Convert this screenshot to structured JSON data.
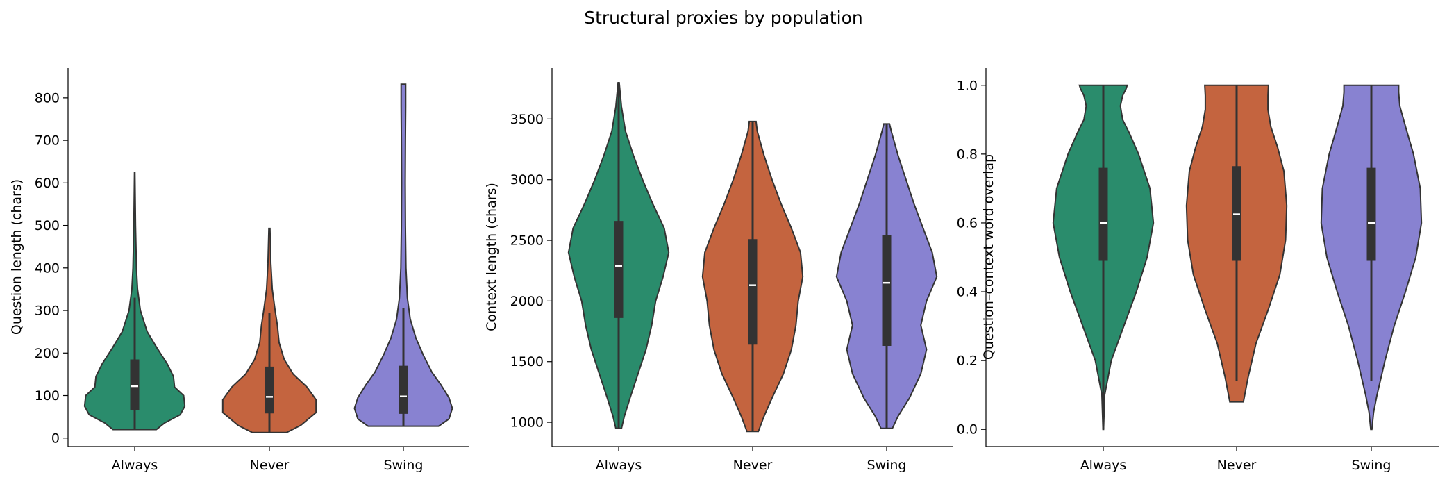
{
  "figure": {
    "title": "Structural proxies by population"
  },
  "chart_data": [
    {
      "type": "violin",
      "ylabel": "Question length (chars)",
      "xlabel": "",
      "categories": [
        "Always",
        "Never",
        "Swing"
      ],
      "ylim": [
        -20,
        870
      ],
      "yticks": [
        0,
        100,
        200,
        300,
        400,
        500,
        600,
        700,
        800
      ],
      "ytick_labels": [
        "0",
        "100",
        "200",
        "300",
        "400",
        "500",
        "600",
        "700",
        "800"
      ],
      "violins": [
        {
          "name": "Always",
          "color": "#2a8c6c",
          "min": 20,
          "max": 625,
          "q1": 65,
          "median": 122,
          "q3": 185,
          "whisker_low": 20,
          "whisker_high": 330,
          "profile": [
            [
              20,
              0.38
            ],
            [
              35,
              0.52
            ],
            [
              55,
              0.8
            ],
            [
              75,
              0.88
            ],
            [
              100,
              0.86
            ],
            [
              120,
              0.7
            ],
            [
              145,
              0.68
            ],
            [
              175,
              0.57
            ],
            [
              210,
              0.4
            ],
            [
              250,
              0.22
            ],
            [
              300,
              0.1
            ],
            [
              350,
              0.05
            ],
            [
              400,
              0.03
            ],
            [
              500,
              0.015
            ],
            [
              625,
              0.004
            ]
          ]
        },
        {
          "name": "Never",
          "color": "#c4643f",
          "min": 13,
          "max": 493,
          "q1": 58,
          "median": 97,
          "q3": 168,
          "whisker_low": 13,
          "whisker_high": 295,
          "profile": [
            [
              13,
              0.3
            ],
            [
              30,
              0.55
            ],
            [
              60,
              0.82
            ],
            [
              90,
              0.82
            ],
            [
              120,
              0.66
            ],
            [
              150,
              0.42
            ],
            [
              185,
              0.26
            ],
            [
              225,
              0.17
            ],
            [
              265,
              0.14
            ],
            [
              300,
              0.1
            ],
            [
              350,
              0.05
            ],
            [
              410,
              0.025
            ],
            [
              493,
              0.01
            ]
          ]
        },
        {
          "name": "Swing",
          "color": "#8882d1",
          "min": 28,
          "max": 832,
          "q1": 57,
          "median": 98,
          "q3": 170,
          "whisker_low": 28,
          "whisker_high": 305,
          "profile": [
            [
              28,
              0.62
            ],
            [
              45,
              0.8
            ],
            [
              70,
              0.86
            ],
            [
              95,
              0.8
            ],
            [
              125,
              0.66
            ],
            [
              155,
              0.5
            ],
            [
              195,
              0.35
            ],
            [
              235,
              0.22
            ],
            [
              280,
              0.12
            ],
            [
              330,
              0.07
            ],
            [
              400,
              0.045
            ],
            [
              500,
              0.035
            ],
            [
              600,
              0.032
            ],
            [
              700,
              0.035
            ],
            [
              780,
              0.04
            ],
            [
              832,
              0.04
            ]
          ]
        }
      ]
    },
    {
      "type": "violin",
      "ylabel": "Context length (chars)",
      "xlabel": "",
      "categories": [
        "Always",
        "Never",
        "Swing"
      ],
      "ylim": [
        800,
        3920
      ],
      "yticks": [
        1000,
        1500,
        2000,
        2500,
        3000,
        3500
      ],
      "ytick_labels": [
        "1000",
        "1500",
        "2000",
        "2500",
        "3000",
        "3500"
      ],
      "violins": [
        {
          "name": "Always",
          "color": "#2a8c6c",
          "min": 950,
          "max": 3800,
          "q1": 1860,
          "median": 2290,
          "q3": 2660,
          "whisker_low": 950,
          "whisker_high": 3800,
          "profile": [
            [
              950,
              0.05
            ],
            [
              1050,
              0.1
            ],
            [
              1200,
              0.2
            ],
            [
              1400,
              0.34
            ],
            [
              1600,
              0.48
            ],
            [
              1800,
              0.58
            ],
            [
              2000,
              0.65
            ],
            [
              2200,
              0.78
            ],
            [
              2400,
              0.88
            ],
            [
              2600,
              0.8
            ],
            [
              2800,
              0.6
            ],
            [
              3000,
              0.42
            ],
            [
              3200,
              0.26
            ],
            [
              3400,
              0.12
            ],
            [
              3600,
              0.05
            ],
            [
              3800,
              0.01
            ]
          ]
        },
        {
          "name": "Never",
          "color": "#c4643f",
          "min": 925,
          "max": 3480,
          "q1": 1640,
          "median": 2130,
          "q3": 2510,
          "whisker_low": 925,
          "whisker_high": 3480,
          "profile": [
            [
              925,
              0.1
            ],
            [
              1050,
              0.2
            ],
            [
              1200,
              0.34
            ],
            [
              1400,
              0.54
            ],
            [
              1600,
              0.68
            ],
            [
              1800,
              0.76
            ],
            [
              2000,
              0.8
            ],
            [
              2200,
              0.88
            ],
            [
              2400,
              0.84
            ],
            [
              2600,
              0.68
            ],
            [
              2800,
              0.5
            ],
            [
              3000,
              0.34
            ],
            [
              3200,
              0.2
            ],
            [
              3400,
              0.08
            ],
            [
              3480,
              0.06
            ]
          ]
        },
        {
          "name": "Swing",
          "color": "#8882d1",
          "min": 950,
          "max": 3460,
          "q1": 1630,
          "median": 2150,
          "q3": 2540,
          "whisker_low": 950,
          "whisker_high": 3460,
          "profile": [
            [
              950,
              0.1
            ],
            [
              1050,
              0.2
            ],
            [
              1200,
              0.4
            ],
            [
              1400,
              0.6
            ],
            [
              1600,
              0.7
            ],
            [
              1800,
              0.6
            ],
            [
              2000,
              0.7
            ],
            [
              2200,
              0.88
            ],
            [
              2400,
              0.8
            ],
            [
              2600,
              0.64
            ],
            [
              2800,
              0.48
            ],
            [
              3000,
              0.34
            ],
            [
              3200,
              0.2
            ],
            [
              3400,
              0.08
            ],
            [
              3460,
              0.05
            ]
          ]
        }
      ]
    },
    {
      "type": "violin",
      "ylabel": "Question–context word overlap",
      "xlabel": "",
      "categories": [
        "Always",
        "Never",
        "Swing"
      ],
      "ylim": [
        -0.05,
        1.05
      ],
      "yticks": [
        0.0,
        0.2,
        0.4,
        0.6,
        0.8,
        1.0
      ],
      "ytick_labels": [
        "0.0",
        "0.2",
        "0.4",
        "0.6",
        "0.8",
        "1.0"
      ],
      "violins": [
        {
          "name": "Always",
          "color": "#2a8c6c",
          "min": 0.0,
          "max": 1.0,
          "q1": 0.49,
          "median": 0.6,
          "q3": 0.76,
          "whisker_low": 0.0,
          "whisker_high": 1.0,
          "profile": [
            [
              0.0,
              0.005
            ],
            [
              0.1,
              0.025
            ],
            [
              0.2,
              0.14
            ],
            [
              0.3,
              0.36
            ],
            [
              0.4,
              0.58
            ],
            [
              0.5,
              0.77
            ],
            [
              0.6,
              0.88
            ],
            [
              0.7,
              0.82
            ],
            [
              0.8,
              0.62
            ],
            [
              0.86,
              0.46
            ],
            [
              0.9,
              0.34
            ],
            [
              0.94,
              0.3
            ],
            [
              0.97,
              0.34
            ],
            [
              0.99,
              0.4
            ],
            [
              1.0,
              0.42
            ]
          ]
        },
        {
          "name": "Never",
          "color": "#c4643f",
          "min": 0.08,
          "max": 1.0,
          "q1": 0.49,
          "median": 0.625,
          "q3": 0.765,
          "whisker_low": 0.14,
          "whisker_high": 1.0,
          "profile": [
            [
              0.08,
              0.12
            ],
            [
              0.15,
              0.2
            ],
            [
              0.25,
              0.34
            ],
            [
              0.35,
              0.56
            ],
            [
              0.45,
              0.76
            ],
            [
              0.55,
              0.86
            ],
            [
              0.65,
              0.88
            ],
            [
              0.75,
              0.83
            ],
            [
              0.82,
              0.72
            ],
            [
              0.88,
              0.6
            ],
            [
              0.93,
              0.55
            ],
            [
              0.97,
              0.55
            ],
            [
              1.0,
              0.56
            ]
          ]
        },
        {
          "name": "Swing",
          "color": "#8882d1",
          "min": 0.0,
          "max": 1.0,
          "q1": 0.49,
          "median": 0.6,
          "q3": 0.76,
          "whisker_low": 0.14,
          "whisker_high": 1.0,
          "profile": [
            [
              0.0,
              0.01
            ],
            [
              0.05,
              0.04
            ],
            [
              0.1,
              0.1
            ],
            [
              0.2,
              0.24
            ],
            [
              0.3,
              0.4
            ],
            [
              0.4,
              0.6
            ],
            [
              0.5,
              0.78
            ],
            [
              0.6,
              0.88
            ],
            [
              0.7,
              0.86
            ],
            [
              0.8,
              0.74
            ],
            [
              0.88,
              0.6
            ],
            [
              0.94,
              0.5
            ],
            [
              0.98,
              0.48
            ],
            [
              1.0,
              0.48
            ]
          ]
        }
      ]
    }
  ]
}
